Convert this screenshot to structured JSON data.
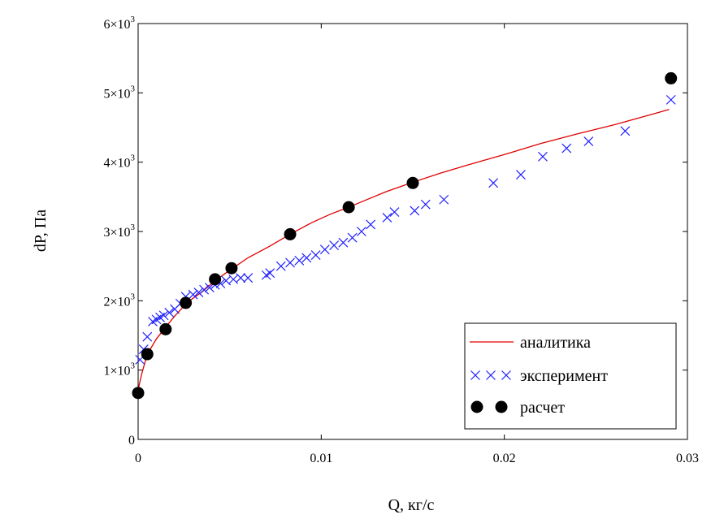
{
  "chart_data": {
    "type": "scatter",
    "title": "",
    "xlabel": "Q, кг/с",
    "ylabel": "dP, Па",
    "xlim": [
      0,
      0.03
    ],
    "ylim": [
      0,
      6000
    ],
    "x_ticks": [
      {
        "value": 0,
        "label": "0"
      },
      {
        "value": 0.01,
        "label": "0.01"
      },
      {
        "value": 0.02,
        "label": "0.02"
      },
      {
        "value": 0.03,
        "label": "0.03"
      }
    ],
    "y_ticks": [
      {
        "value": 0,
        "mant": "0",
        "exp": ""
      },
      {
        "value": 1000,
        "mant": "1×10",
        "exp": "3"
      },
      {
        "value": 2000,
        "mant": "2×10",
        "exp": "3"
      },
      {
        "value": 3000,
        "mant": "3×10",
        "exp": "3"
      },
      {
        "value": 4000,
        "mant": "4×10",
        "exp": "3"
      },
      {
        "value": 5000,
        "mant": "5×10",
        "exp": "3"
      },
      {
        "value": 6000,
        "mant": "6×10",
        "exp": "3"
      }
    ],
    "grid": false,
    "legend_position": "bottom-right",
    "series": [
      {
        "name": "аналитика",
        "kind": "line",
        "color": "#e00000",
        "x": [
          0,
          0.0002,
          0.0005,
          0.001,
          0.0015,
          0.002,
          0.0027,
          0.0035,
          0.0042,
          0.005,
          0.006,
          0.0072,
          0.0083,
          0.0095,
          0.0105,
          0.0115,
          0.0125,
          0.0135,
          0.015,
          0.0165,
          0.018,
          0.02,
          0.022,
          0.024,
          0.026,
          0.0282,
          0.029
        ],
        "y": [
          720,
          950,
          1230,
          1450,
          1620,
          1780,
          1980,
          2130,
          2290,
          2440,
          2620,
          2790,
          2960,
          3130,
          3250,
          3350,
          3460,
          3570,
          3710,
          3840,
          3960,
          4110,
          4270,
          4410,
          4540,
          4700,
          4760
        ]
      },
      {
        "name": "эксперимент",
        "kind": "scatter-x",
        "color": "#2020ff",
        "x": [
          0.0001,
          0.0003,
          0.0005,
          0.0008,
          0.001,
          0.0012,
          0.0014,
          0.0017,
          0.002,
          0.0023,
          0.0026,
          0.003,
          0.0033,
          0.0036,
          0.0039,
          0.0042,
          0.0045,
          0.0048,
          0.0052,
          0.0056,
          0.006,
          0.007,
          0.0072,
          0.0078,
          0.0083,
          0.0088,
          0.0092,
          0.0097,
          0.0102,
          0.0107,
          0.0112,
          0.0117,
          0.0122,
          0.0127,
          0.0136,
          0.014,
          0.0151,
          0.0157,
          0.0167,
          0.0194,
          0.0209,
          0.0221,
          0.0234,
          0.0246,
          0.0266,
          0.0291
        ],
        "y": [
          1150,
          1300,
          1480,
          1700,
          1730,
          1760,
          1790,
          1830,
          1880,
          1960,
          2060,
          2090,
          2120,
          2160,
          2190,
          2230,
          2250,
          2290,
          2310,
          2330,
          2330,
          2370,
          2400,
          2500,
          2550,
          2580,
          2620,
          2660,
          2740,
          2800,
          2840,
          2910,
          3000,
          3100,
          3200,
          3280,
          3300,
          3390,
          3460,
          3700,
          3820,
          4080,
          4200,
          4300,
          4450,
          4900
        ]
      },
      {
        "name": "расчет",
        "kind": "scatter-dot",
        "color": "#000000",
        "x": [
          0,
          0.0005,
          0.0015,
          0.0026,
          0.0042,
          0.0051,
          0.0083,
          0.0115,
          0.015,
          0.0291
        ],
        "y": [
          670,
          1230,
          1590,
          1970,
          2310,
          2470,
          2960,
          3350,
          3700,
          5210
        ]
      }
    ]
  }
}
